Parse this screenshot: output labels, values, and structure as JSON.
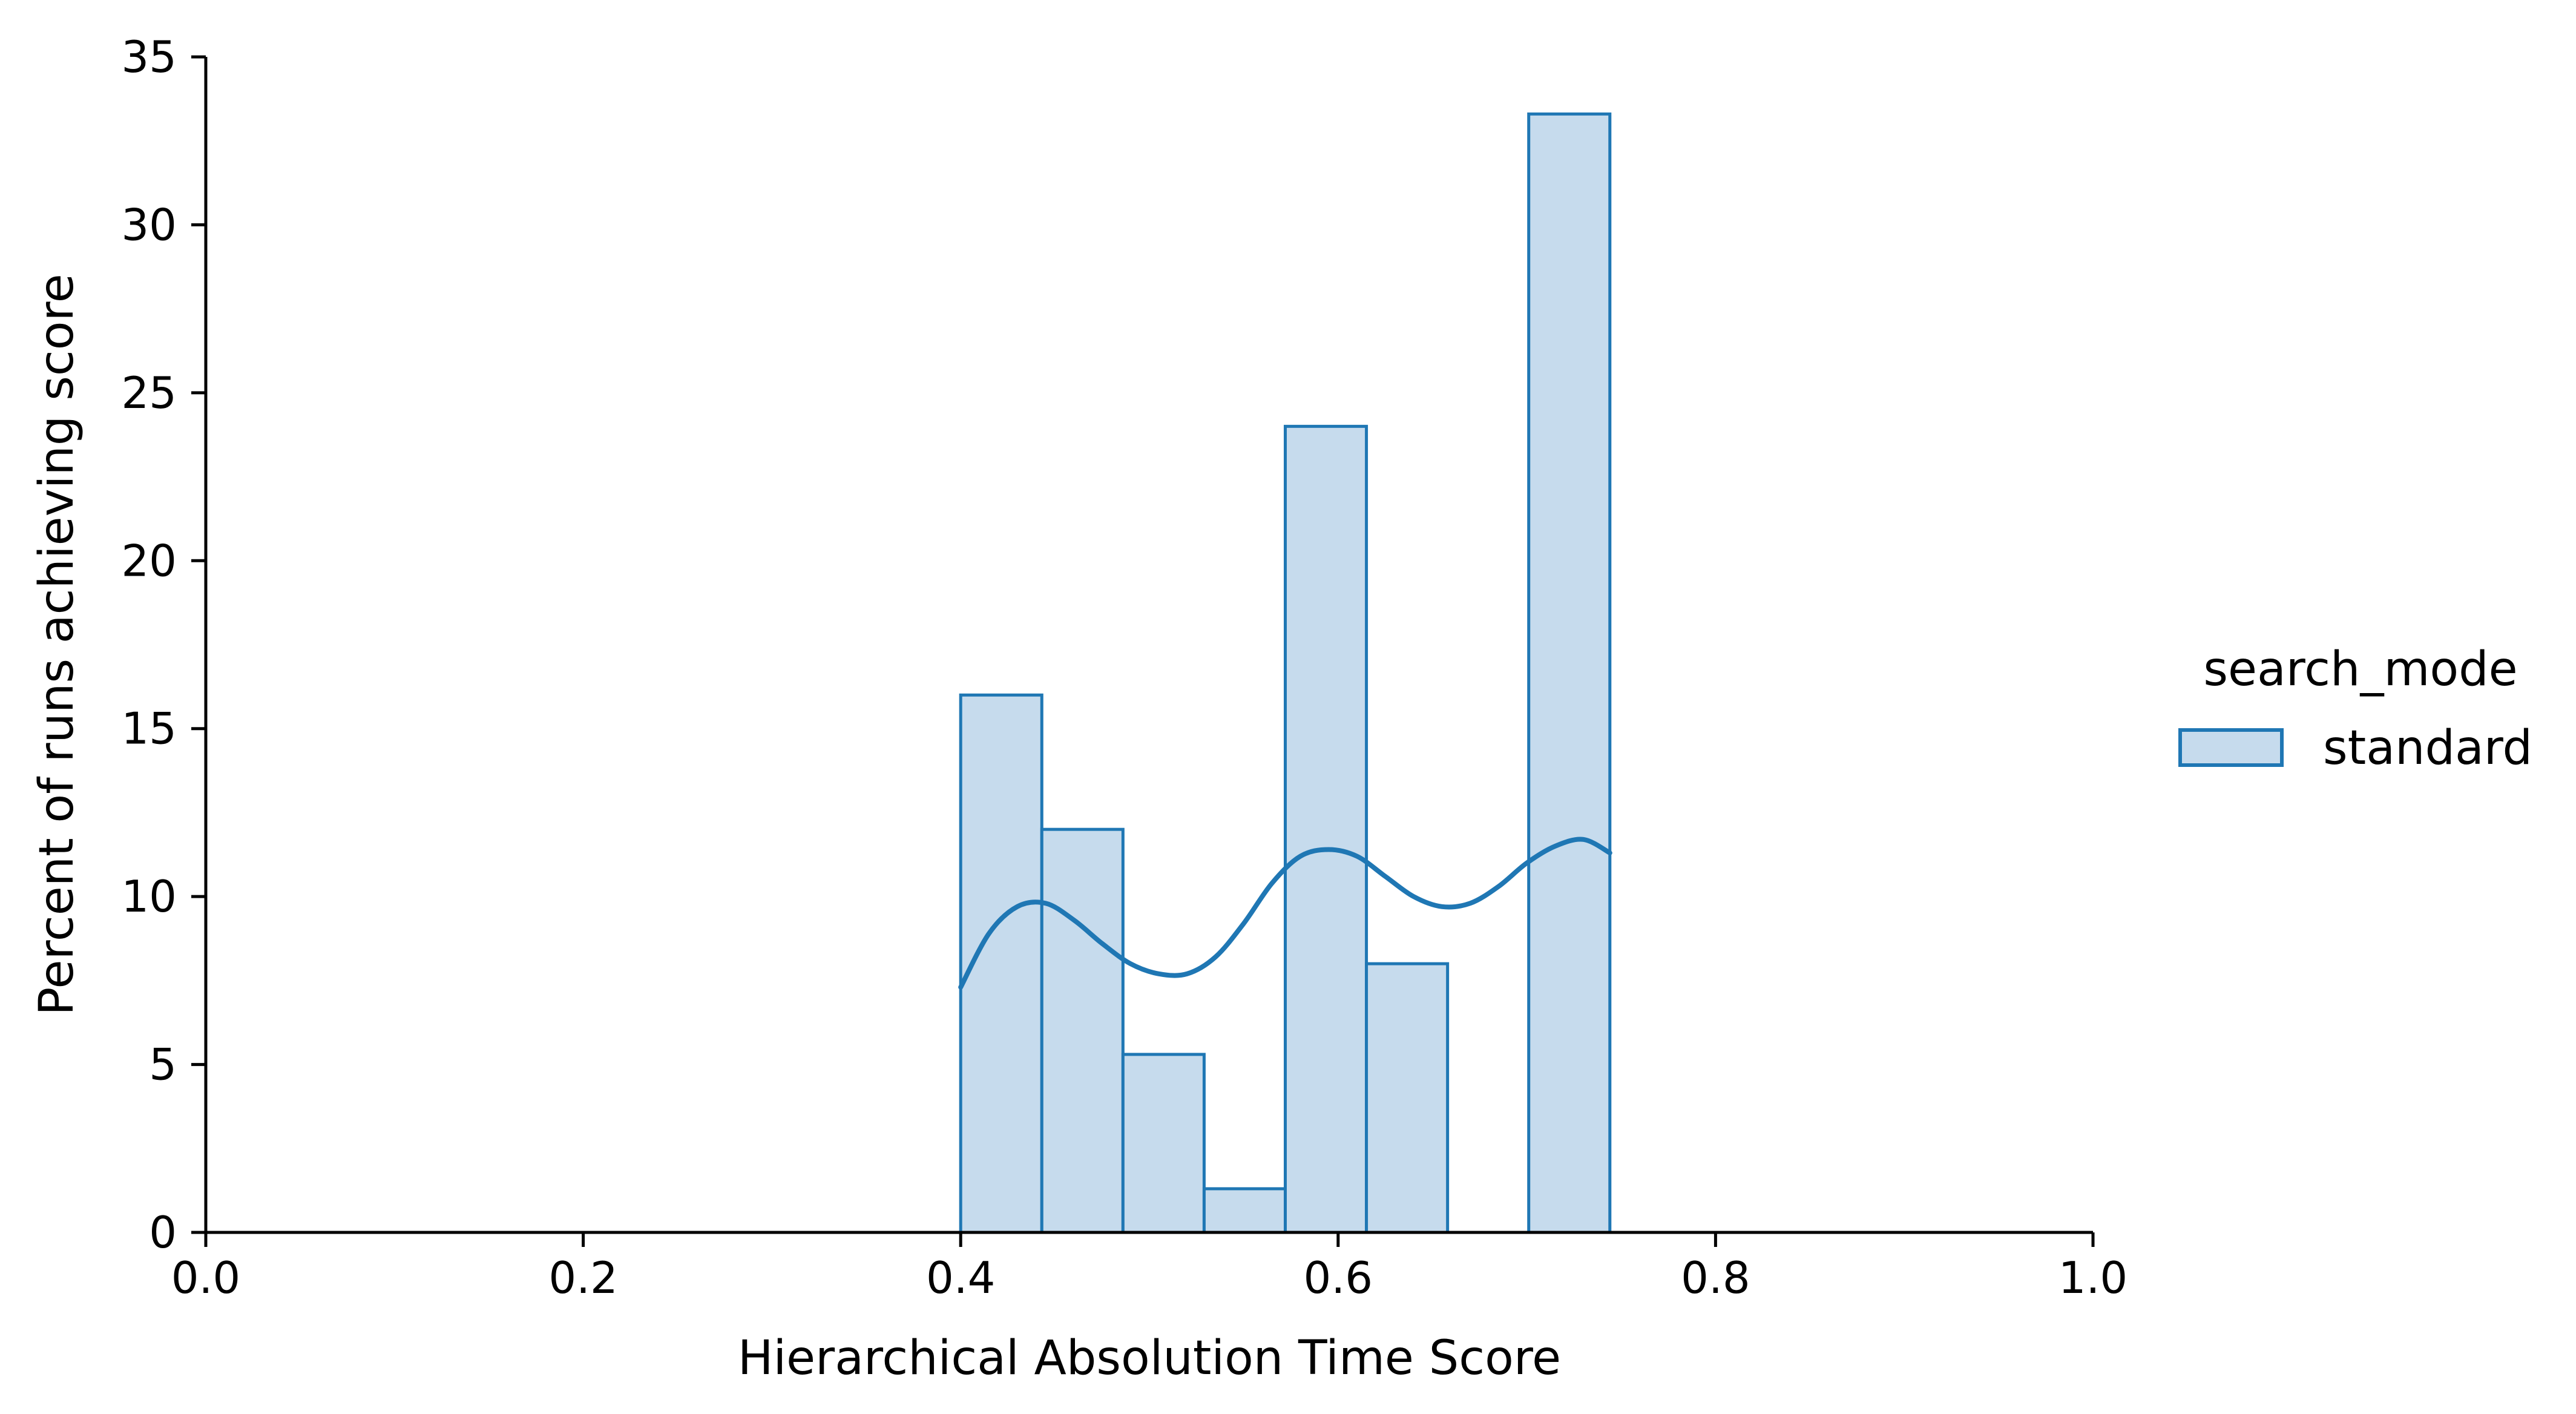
{
  "chart_data": {
    "type": "bar",
    "subtype": "histogram",
    "xlabel": "Hierarchical Absolution Time Score",
    "ylabel": "Percent of runs achieving score",
    "xlim": [
      0.0,
      1.0
    ],
    "ylim": [
      0,
      35
    ],
    "xticks": [
      "0.0",
      "0.2",
      "0.4",
      "0.6",
      "0.8",
      "1.0"
    ],
    "yticks": [
      "0",
      "5",
      "10",
      "15",
      "20",
      "25",
      "30",
      "35"
    ],
    "grid": false,
    "legend": {
      "title": "search_mode",
      "placement": "right",
      "entries": [
        "standard"
      ]
    },
    "colors": {
      "edge": "#1f77b4",
      "fill": "#c6dbed"
    },
    "series": [
      {
        "name": "standard",
        "bins": [
          {
            "x0": 0.4,
            "x1": 0.443,
            "value": 16.0
          },
          {
            "x0": 0.443,
            "x1": 0.486,
            "value": 12.0
          },
          {
            "x0": 0.486,
            "x1": 0.529,
            "value": 5.3
          },
          {
            "x0": 0.529,
            "x1": 0.572,
            "value": 1.3
          },
          {
            "x0": 0.572,
            "x1": 0.615,
            "value": 24.0
          },
          {
            "x0": 0.615,
            "x1": 0.658,
            "value": 8.0
          },
          {
            "x0": 0.658,
            "x1": 0.701,
            "value": 0.0
          },
          {
            "x0": 0.701,
            "x1": 0.744,
            "value": 33.3
          }
        ],
        "kde": {
          "x": [
            0.4,
            0.415,
            0.43,
            0.445,
            0.46,
            0.475,
            0.49,
            0.505,
            0.52,
            0.535,
            0.55,
            0.565,
            0.58,
            0.595,
            0.61,
            0.625,
            0.64,
            0.655,
            0.67,
            0.685,
            0.7,
            0.715,
            0.73,
            0.744
          ],
          "y": [
            7.3,
            8.9,
            9.7,
            9.8,
            9.3,
            8.6,
            8.0,
            7.7,
            7.7,
            8.2,
            9.2,
            10.4,
            11.2,
            11.4,
            11.2,
            10.6,
            10.0,
            9.7,
            9.8,
            10.3,
            11.0,
            11.5,
            11.7,
            11.3
          ]
        }
      }
    ]
  }
}
